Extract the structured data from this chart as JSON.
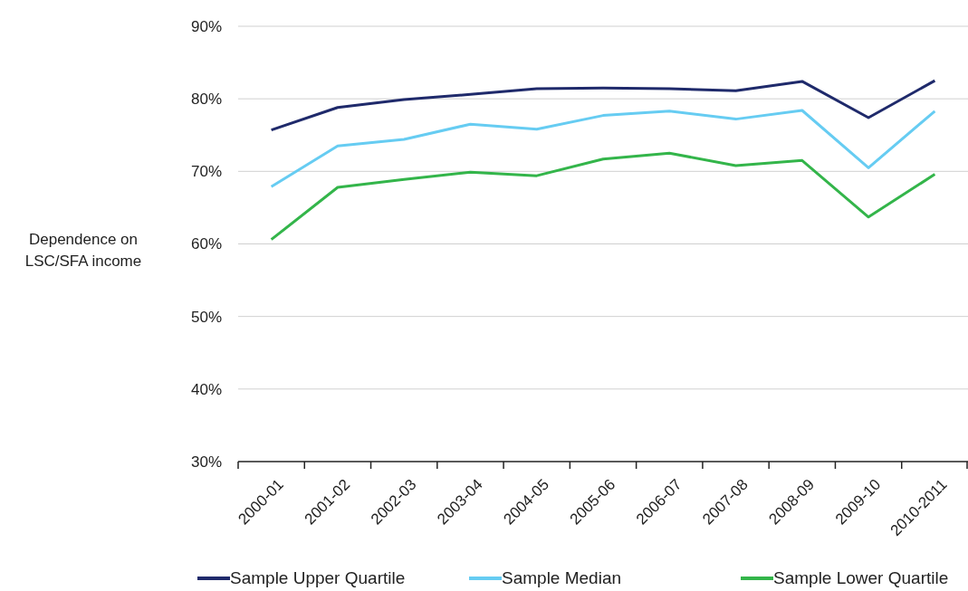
{
  "chart_data": {
    "type": "line",
    "ylabel": "Dependence on LSC/SFA income",
    "categories": [
      "2000-01",
      "2001-02",
      "2002-03",
      "2003-04",
      "2004-05",
      "2005-06",
      "2006-07",
      "2007-08",
      "2008-09",
      "2009-10",
      "2010-2011"
    ],
    "series": [
      {
        "name": "Sample Upper Quartile",
        "color": "#1f2a6b",
        "values": [
          75.7,
          78.8,
          79.9,
          80.6,
          81.4,
          81.5,
          81.4,
          81.1,
          82.4,
          77.4,
          82.5
        ]
      },
      {
        "name": "Sample Median",
        "color": "#66ccf2",
        "values": [
          67.9,
          73.5,
          74.4,
          76.5,
          75.8,
          77.7,
          78.3,
          77.2,
          78.4,
          70.5,
          78.3
        ]
      },
      {
        "name": "Sample Lower Quartile",
        "color": "#33b54a",
        "values": [
          60.6,
          67.8,
          68.9,
          69.9,
          69.4,
          71.7,
          72.5,
          70.8,
          71.5,
          63.7,
          69.6
        ]
      }
    ],
    "ylim": [
      30,
      90
    ],
    "yticks": [
      {
        "value": 30,
        "label": "30%"
      },
      {
        "value": 40,
        "label": "40%"
      },
      {
        "value": 50,
        "label": "50%"
      },
      {
        "value": 60,
        "label": "60%"
      },
      {
        "value": 70,
        "label": "70%"
      },
      {
        "value": 80,
        "label": "80%"
      },
      {
        "value": 90,
        "label": "90%"
      }
    ],
    "grid": "y",
    "legend": "bottom",
    "marker": "none",
    "line_style": "solid"
  }
}
